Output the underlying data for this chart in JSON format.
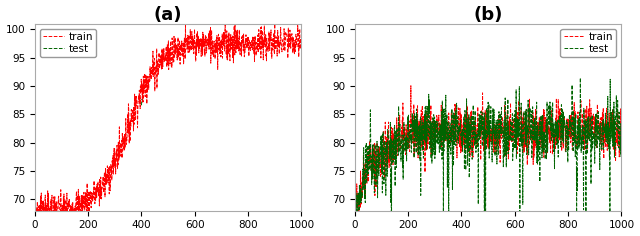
{
  "n_epochs": 1000,
  "title_a": "(a)",
  "title_b": "(b)",
  "train_color": "#ff0000",
  "test_color": "#006400",
  "train_label": "train",
  "test_label": "test",
  "ylim_a": [
    68,
    101
  ],
  "ylim_b": [
    68,
    101
  ],
  "yticks": [
    70,
    75,
    80,
    85,
    90,
    95,
    100
  ],
  "xlim": [
    0,
    1000
  ],
  "xticks": [
    0,
    200,
    400,
    600,
    800,
    1000
  ],
  "linestyle": "--",
  "linewidth": 0.7,
  "legend_fontsize": 7.5,
  "title_fontsize": 13,
  "tick_labelsize": 7.5,
  "figure_facecolor": "#ffffff",
  "axes_facecolor": "#ffffff",
  "spine_color": "#aaaaaa"
}
